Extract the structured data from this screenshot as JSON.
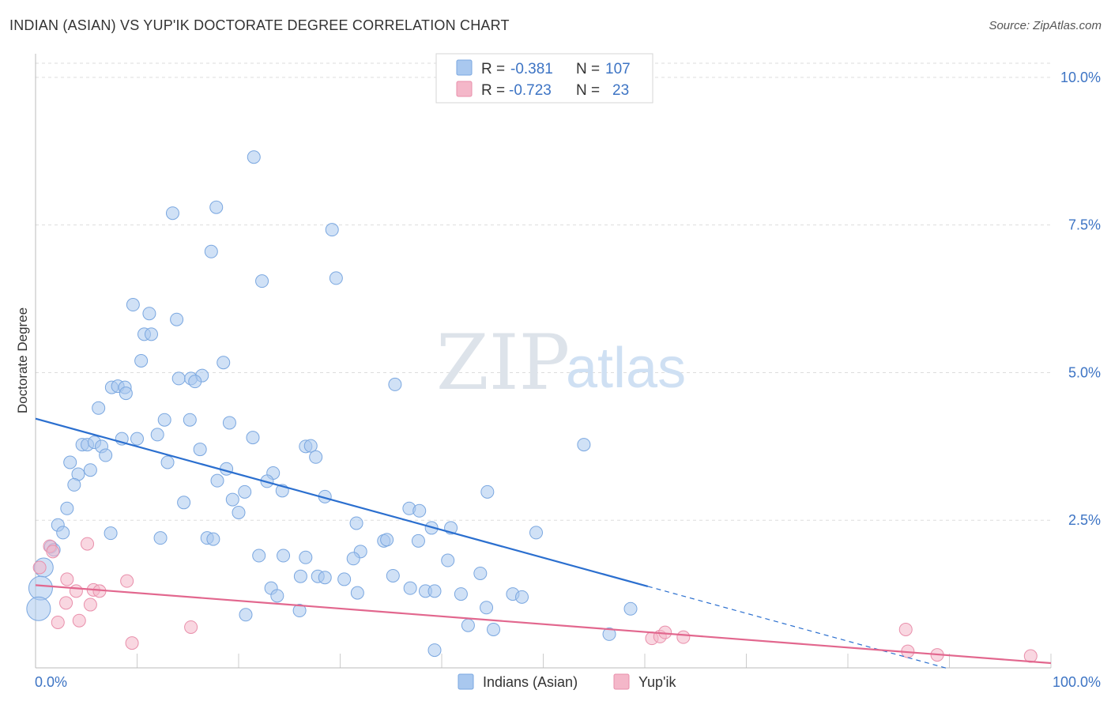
{
  "header": {
    "title": "INDIAN (ASIAN) VS YUP'IK DOCTORATE DEGREE CORRELATION CHART",
    "source": "Source: ZipAtlas.com"
  },
  "watermark": {
    "zip": "ZIP",
    "atlas": "atlas"
  },
  "legend": {
    "rows": [
      {
        "r_label": "R =",
        "r_value": "-0.381",
        "n_label": "N =",
        "n_value": "107",
        "color": "#a9c8ef"
      },
      {
        "r_label": "R =",
        "r_value": "-0.723",
        "n_label": "N =",
        "n_value": "23",
        "color": "#f4b7c9"
      }
    ]
  },
  "bottom_legend": {
    "items": [
      {
        "label": "Indians (Asian)",
        "color": "#a9c8ef"
      },
      {
        "label": "Yup'ik",
        "color": "#f4b7c9"
      }
    ]
  },
  "chart_data": {
    "type": "scatter",
    "title": "INDIAN (ASIAN) VS YUP'IK DOCTORATE DEGREE CORRELATION CHART",
    "xlabel": "",
    "ylabel": "Doctorate Degree",
    "xlim": [
      0,
      100
    ],
    "ylim": [
      0,
      10.4
    ],
    "x_tick_labels": [
      "0.0%",
      "100.0%"
    ],
    "y_ticks": [
      2.5,
      5.0,
      7.5,
      10.0
    ],
    "y_tick_labels": [
      "2.5%",
      "5.0%",
      "7.5%",
      "10.0%"
    ],
    "grid": true,
    "legend_position": "top-center",
    "series": [
      {
        "name": "Indians (Asian)",
        "color": "#a9c8ef",
        "stroke": "#7aa7e0",
        "trend_color": "#2b6fcf",
        "trend": {
          "x0": 0,
          "y0": 4.22,
          "x1": 60.3,
          "y1": 1.38,
          "dash_to_x": 90
        },
        "points": [
          [
            21.5,
            8.65
          ],
          [
            17.8,
            7.8
          ],
          [
            13.5,
            7.7
          ],
          [
            29.2,
            7.42
          ],
          [
            17.3,
            7.05
          ],
          [
            22.3,
            6.55
          ],
          [
            29.6,
            6.6
          ],
          [
            9.6,
            6.15
          ],
          [
            11.2,
            6.0
          ],
          [
            13.9,
            5.9
          ],
          [
            10.7,
            5.65
          ],
          [
            11.4,
            5.65
          ],
          [
            10.4,
            5.2
          ],
          [
            18.5,
            5.17
          ],
          [
            14.1,
            4.9
          ],
          [
            15.3,
            4.9
          ],
          [
            16.4,
            4.95
          ],
          [
            15.7,
            4.85
          ],
          [
            7.5,
            4.75
          ],
          [
            8.1,
            4.77
          ],
          [
            8.8,
            4.75
          ],
          [
            8.9,
            4.65
          ],
          [
            6.2,
            4.4
          ],
          [
            35.4,
            4.8
          ],
          [
            12.7,
            4.2
          ],
          [
            15.2,
            4.2
          ],
          [
            19.1,
            4.15
          ],
          [
            12.0,
            3.95
          ],
          [
            10.0,
            3.88
          ],
          [
            8.5,
            3.88
          ],
          [
            21.4,
            3.9
          ],
          [
            4.6,
            3.78
          ],
          [
            5.1,
            3.78
          ],
          [
            5.8,
            3.82
          ],
          [
            6.5,
            3.75
          ],
          [
            16.2,
            3.7
          ],
          [
            26.6,
            3.75
          ],
          [
            27.1,
            3.76
          ],
          [
            54.0,
            3.78
          ],
          [
            6.9,
            3.6
          ],
          [
            27.6,
            3.57
          ],
          [
            3.4,
            3.48
          ],
          [
            13.0,
            3.48
          ],
          [
            5.4,
            3.35
          ],
          [
            18.8,
            3.37
          ],
          [
            4.2,
            3.28
          ],
          [
            23.4,
            3.3
          ],
          [
            17.9,
            3.17
          ],
          [
            22.8,
            3.16
          ],
          [
            3.8,
            3.1
          ],
          [
            24.3,
            3.0
          ],
          [
            20.6,
            2.98
          ],
          [
            19.4,
            2.85
          ],
          [
            28.5,
            2.9
          ],
          [
            44.5,
            2.98
          ],
          [
            14.6,
            2.8
          ],
          [
            3.1,
            2.7
          ],
          [
            20.0,
            2.63
          ],
          [
            36.8,
            2.7
          ],
          [
            37.8,
            2.66
          ],
          [
            2.2,
            2.42
          ],
          [
            31.6,
            2.45
          ],
          [
            39.0,
            2.37
          ],
          [
            40.9,
            2.37
          ],
          [
            2.7,
            2.29
          ],
          [
            7.4,
            2.28
          ],
          [
            49.3,
            2.29
          ],
          [
            12.3,
            2.2
          ],
          [
            16.9,
            2.2
          ],
          [
            17.5,
            2.18
          ],
          [
            34.3,
            2.15
          ],
          [
            34.6,
            2.17
          ],
          [
            37.7,
            2.15
          ],
          [
            1.5,
            2.05
          ],
          [
            1.8,
            2.0
          ],
          [
            32.0,
            1.97
          ],
          [
            22.0,
            1.9
          ],
          [
            24.4,
            1.9
          ],
          [
            26.6,
            1.87
          ],
          [
            31.3,
            1.85
          ],
          [
            40.6,
            1.82
          ],
          [
            0.8,
            1.7
          ],
          [
            43.8,
            1.6
          ],
          [
            26.1,
            1.55
          ],
          [
            27.8,
            1.55
          ],
          [
            28.5,
            1.53
          ],
          [
            30.4,
            1.5
          ],
          [
            35.2,
            1.56
          ],
          [
            0.5,
            1.35
          ],
          [
            23.2,
            1.35
          ],
          [
            31.7,
            1.27
          ],
          [
            36.9,
            1.35
          ],
          [
            38.4,
            1.3
          ],
          [
            39.3,
            1.3
          ],
          [
            41.9,
            1.25
          ],
          [
            23.8,
            1.22
          ],
          [
            47.0,
            1.25
          ],
          [
            47.9,
            1.2
          ],
          [
            0.3,
            1.0
          ],
          [
            26.0,
            0.97
          ],
          [
            44.4,
            1.02
          ],
          [
            58.6,
            1.0
          ],
          [
            20.7,
            0.9
          ],
          [
            42.6,
            0.72
          ],
          [
            45.1,
            0.65
          ],
          [
            56.5,
            0.57
          ],
          [
            39.3,
            0.3
          ]
        ]
      },
      {
        "name": "Yup'ik",
        "color": "#f4b7c9",
        "stroke": "#e98fab",
        "trend_color": "#e2678e",
        "trend": {
          "x0": 0,
          "y0": 1.4,
          "x1": 100,
          "y1": 0.08
        },
        "points": [
          [
            5.1,
            2.1
          ],
          [
            1.4,
            2.06
          ],
          [
            1.7,
            1.97
          ],
          [
            0.4,
            1.7
          ],
          [
            3.1,
            1.5
          ],
          [
            9.0,
            1.47
          ],
          [
            4.0,
            1.3
          ],
          [
            5.7,
            1.32
          ],
          [
            6.3,
            1.3
          ],
          [
            3.0,
            1.1
          ],
          [
            5.4,
            1.07
          ],
          [
            2.2,
            0.77
          ],
          [
            4.3,
            0.8
          ],
          [
            15.3,
            0.69
          ],
          [
            9.5,
            0.42
          ],
          [
            60.7,
            0.5
          ],
          [
            61.5,
            0.53
          ],
          [
            62.0,
            0.6
          ],
          [
            63.8,
            0.52
          ],
          [
            85.7,
            0.65
          ],
          [
            85.9,
            0.28
          ],
          [
            88.8,
            0.22
          ],
          [
            98.0,
            0.2
          ]
        ]
      }
    ]
  }
}
